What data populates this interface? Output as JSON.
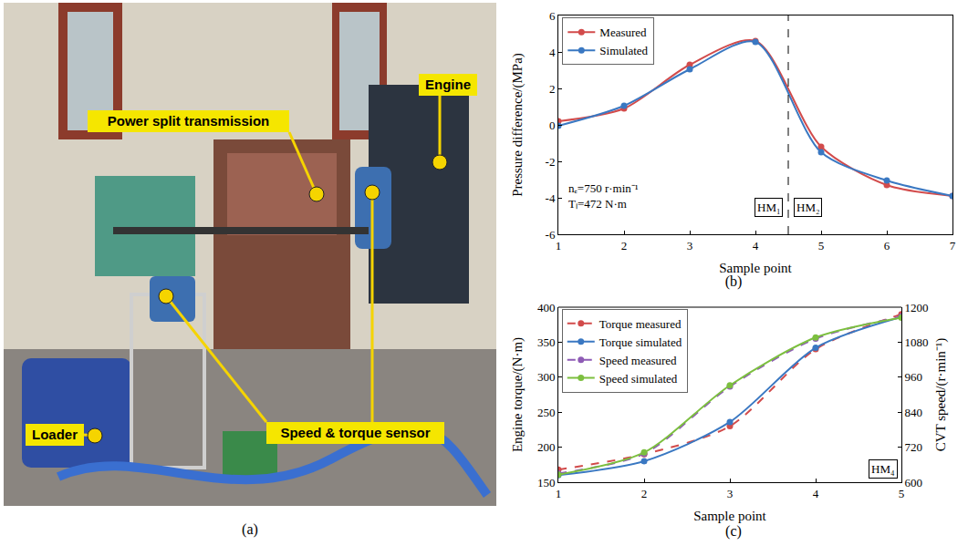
{
  "photo": {
    "caption": "(a)",
    "labels": [
      "Engine",
      "Power split transmission",
      "Loader",
      "Speed & torque sensor"
    ]
  },
  "chart_data": [
    {
      "type": "line",
      "caption": "(b)",
      "x_label": "Sample point",
      "y_label": "Pressure difference/(MPa)",
      "x": [
        1,
        2,
        3,
        4,
        5,
        6,
        7
      ],
      "xlim": [
        1,
        7
      ],
      "xticks": [
        1,
        2,
        3,
        4,
        5,
        6,
        7
      ],
      "ylim": [
        -6,
        6
      ],
      "yticks": [
        -6,
        -4,
        -2,
        0,
        2,
        4,
        6
      ],
      "grid": false,
      "legend": "top-left",
      "series": [
        {
          "name": "Measured",
          "color": "#d24b4b",
          "marker": "circle",
          "line_style": "solid",
          "values": [
            0.2,
            0.9,
            3.3,
            4.6,
            -1.2,
            -3.3,
            -3.9
          ]
        },
        {
          "name": "Simulated",
          "color": "#3a78c2",
          "marker": "circle",
          "line_style": "solid",
          "values": [
            -0.05,
            1.05,
            3.05,
            4.55,
            -1.5,
            -3.05,
            -3.9
          ]
        }
      ],
      "divider": 4.5,
      "regions": [
        "HM₁",
        "HM₂"
      ],
      "annotations": [
        "nₑ=750 r·min⁻¹",
        "Tₗ=472 N·m"
      ]
    },
    {
      "type": "line",
      "caption": "(c)",
      "x_label": "Sample point",
      "y_label": "Engine torque/(N·m)",
      "y2_label": "CVT speed/(r·min⁻¹)",
      "x": [
        1,
        2,
        3,
        4,
        5
      ],
      "xlim": [
        1,
        5
      ],
      "xticks": [
        1,
        2,
        3,
        4,
        5
      ],
      "ylim": [
        150,
        400
      ],
      "yticks": [
        150,
        200,
        250,
        300,
        350,
        400
      ],
      "y2lim": [
        600,
        1200
      ],
      "y2ticks": [
        600,
        720,
        840,
        960,
        1080,
        1200
      ],
      "grid": false,
      "legend": "top-left",
      "series": [
        {
          "name": "Torque measured",
          "color": "#d24b4b",
          "marker": "circle",
          "line_style": "dashed",
          "values": [
            168,
            190,
            230,
            340,
            390
          ]
        },
        {
          "name": "Torque simulated",
          "color": "#3a78c2",
          "marker": "circle",
          "line_style": "solid",
          "values": [
            160,
            180,
            236,
            342,
            386
          ]
        },
        {
          "name": "Speed measured",
          "color": "#8e5bb5",
          "marker": "circle",
          "line_style": "dashed",
          "axis": "y2",
          "values": [
            630,
            698,
            928,
            1092,
            1168
          ]
        },
        {
          "name": "Speed simulated",
          "color": "#7cbf3f",
          "marker": "circle",
          "line_style": "solid",
          "axis": "y2",
          "values": [
            626,
            702,
            932,
            1096,
            1164
          ]
        }
      ],
      "regions": [
        "HM₄"
      ]
    }
  ]
}
